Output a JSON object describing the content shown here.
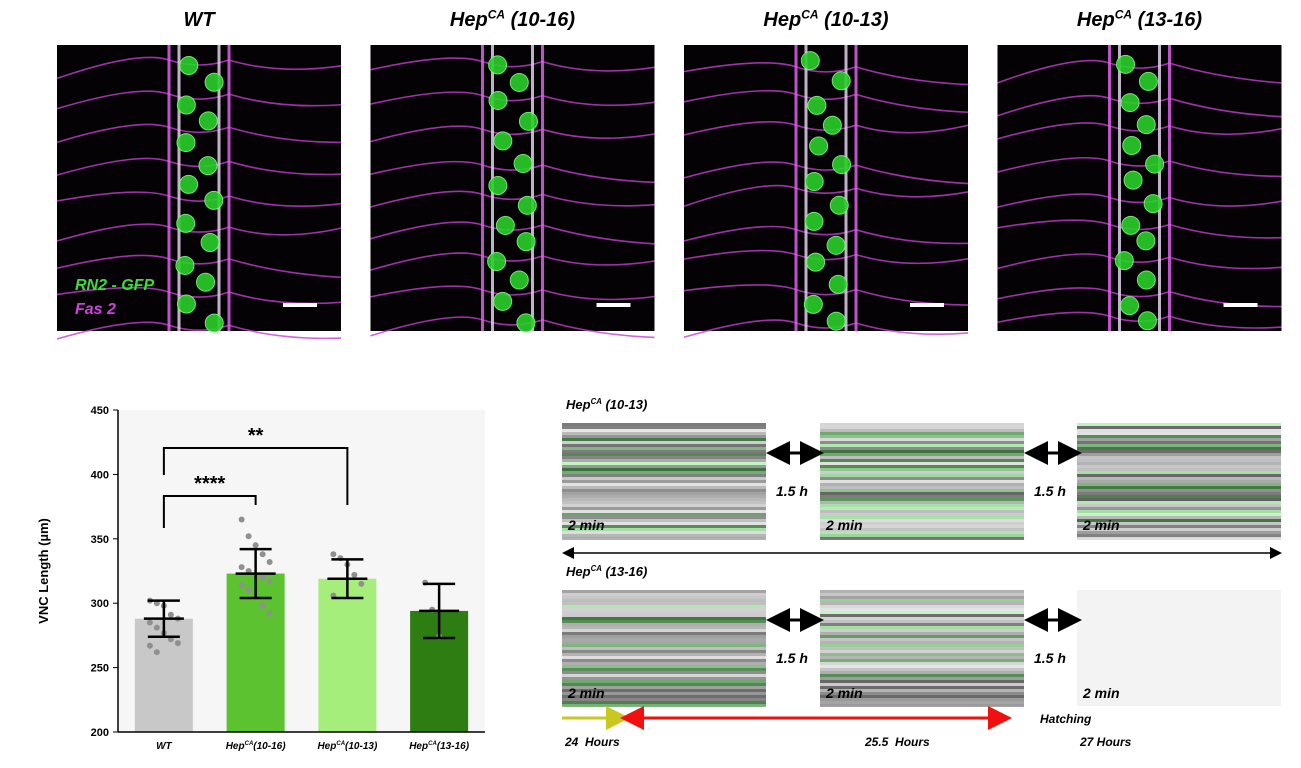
{
  "panels": [
    {
      "title": {
        "base": "WT"
      }
    },
    {
      "title": {
        "base": "Hep",
        "sup": "CA",
        "suffix": " (10-16)"
      }
    },
    {
      "title": {
        "base": "Hep",
        "sup": "CA",
        "suffix": " (10-13)"
      }
    },
    {
      "title": {
        "base": "Hep",
        "sup": "CA",
        "suffix": " (13-16)"
      }
    }
  ],
  "stain_labels": [
    "RN2 - GFP",
    "Fas 2"
  ],
  "chart_data": {
    "type": "bar",
    "y_label": "VNC Length (µm)",
    "categories": [
      {
        "base": "WT"
      },
      {
        "base": "Hep",
        "sup": "CA",
        "suffix": "(10-16)"
      },
      {
        "base": "Hep",
        "sup": "CA",
        "suffix": "(10-13)"
      },
      {
        "base": "Hep",
        "sup": "CA",
        "suffix": "(13-16)"
      }
    ],
    "values": [
      288,
      323,
      319,
      294
    ],
    "errors": [
      14,
      19,
      15,
      21
    ],
    "colors": [
      "#c8c8c8",
      "#5cc230",
      "#a6ee7c",
      "#2e7d12"
    ],
    "points": [
      [
        302,
        300,
        298,
        291,
        288,
        285,
        281,
        277,
        272,
        269,
        267,
        262
      ],
      [
        365,
        352,
        345,
        338,
        332,
        328,
        325,
        322,
        320,
        317,
        314,
        310,
        305,
        298,
        292
      ],
      [
        338,
        335,
        330,
        322,
        315,
        306
      ],
      [
        316,
        295,
        274
      ]
    ],
    "ylim": [
      200,
      450
    ],
    "yticks": [
      200,
      250,
      300,
      350,
      400,
      450
    ],
    "significance": [
      "**",
      "****"
    ]
  },
  "kymographs": {
    "rows": [
      {
        "label": {
          "base": "Hep",
          "sup": "CA",
          "suffix": " (10-13)"
        },
        "durations": [
          "2 min",
          "2 min",
          "2 min"
        ],
        "intervals": [
          "1.5 h",
          "1.5 h"
        ]
      },
      {
        "label": {
          "base": "Hep",
          "sup": "CA",
          "suffix": " (13-16)"
        },
        "durations": [
          "2 min",
          "2 min",
          "2 min"
        ],
        "intervals": [
          "1.5 h",
          "1.5 h"
        ]
      }
    ],
    "end_label": "Hatching",
    "times": [
      "24  Hours",
      "25.5  Hours",
      "27 Hours"
    ]
  }
}
